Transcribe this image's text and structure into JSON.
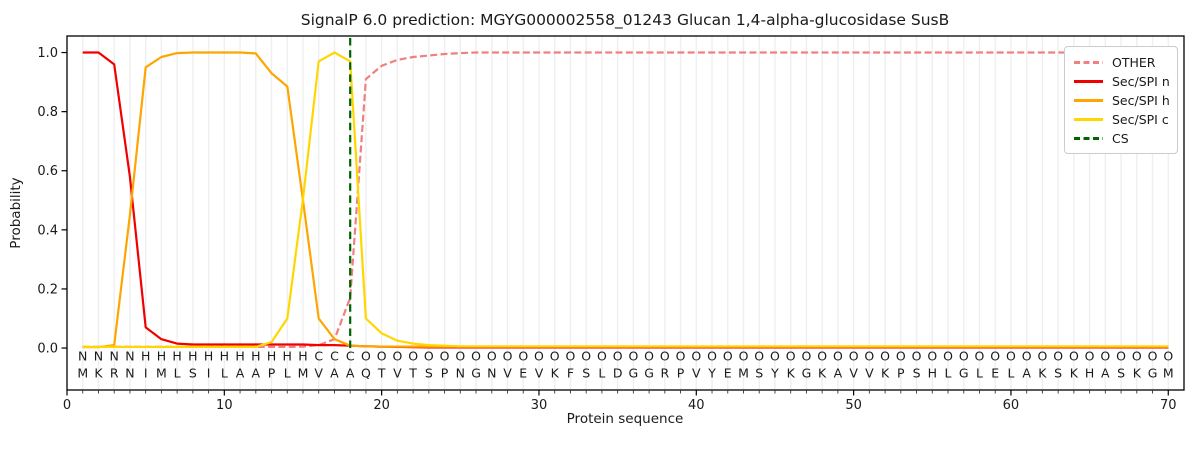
{
  "title": "SignalP 6.0 prediction: MGYG000002558_01243 Glucan 1,4-alpha-glucosidase SusB",
  "chart_data": {
    "type": "line",
    "title": "SignalP 6.0 prediction: MGYG000002558_01243 Glucan 1,4-alpha-glucosidase SusB",
    "xlabel": "Protein sequence",
    "ylabel": "Probability",
    "xlim": [
      0,
      71
    ],
    "ylim": [
      -0.142,
      1.056
    ],
    "x_ticks": [
      0,
      10,
      20,
      30,
      40,
      50,
      60,
      70
    ],
    "y_tick_labels": [
      "0.0",
      "0.2",
      "0.4",
      "0.6",
      "0.8",
      "1.0"
    ],
    "grid": "vertical line at every residue, light gray, no horizontal grid",
    "legend_position": "upper-right",
    "x": "residue positions 1-70",
    "series": [
      {
        "name": "OTHER",
        "color": "#f08080",
        "style": "dashed",
        "values": [
          0.004,
          0.004,
          0.004,
          0.004,
          0.004,
          0.004,
          0.004,
          0.004,
          0.004,
          0.004,
          0.004,
          0.004,
          0.004,
          0.004,
          0.005,
          0.01,
          0.03,
          0.17,
          0.91,
          0.955,
          0.975,
          0.985,
          0.99,
          0.995,
          0.998,
          1.0,
          1.0,
          1.0,
          1.0,
          1.0,
          1.0,
          1.0,
          1.0,
          1.0,
          1.0,
          1.0,
          1.0,
          1.0,
          1.0,
          1.0,
          1.0,
          1.0,
          1.0,
          1.0,
          1.0,
          1.0,
          1.0,
          1.0,
          1.0,
          1.0,
          1.0,
          1.0,
          1.0,
          1.0,
          1.0,
          1.0,
          1.0,
          1.0,
          1.0,
          1.0,
          1.0,
          1.0,
          1.0,
          1.0,
          1.0,
          1.0,
          1.0,
          1.0,
          1.0,
          1.0
        ]
      },
      {
        "name": "Sec/SPI n",
        "color": "#f10000",
        "style": "solid",
        "values": [
          1.0,
          1.0,
          0.96,
          0.58,
          0.07,
          0.03,
          0.015,
          0.012,
          0.012,
          0.012,
          0.012,
          0.012,
          0.012,
          0.012,
          0.012,
          0.01,
          0.01,
          0.008,
          0.006,
          0.005,
          0.004,
          0.003,
          0.002,
          0.002,
          0.002,
          0.002,
          0.002,
          0.002,
          0.002,
          0.002,
          0.002,
          0.002,
          0.002,
          0.002,
          0.002,
          0.002,
          0.002,
          0.002,
          0.002,
          0.002,
          0.002,
          0.002,
          0.002,
          0.002,
          0.002,
          0.002,
          0.002,
          0.002,
          0.002,
          0.002,
          0.002,
          0.002,
          0.002,
          0.002,
          0.002,
          0.002,
          0.002,
          0.002,
          0.002,
          0.002,
          0.002,
          0.002,
          0.002,
          0.002,
          0.002,
          0.002,
          0.002,
          0.002,
          0.002,
          0.002
        ]
      },
      {
        "name": "Sec/SPI h",
        "color": "#ffa500",
        "style": "solid",
        "values": [
          0.003,
          0.003,
          0.01,
          0.45,
          0.95,
          0.985,
          0.998,
          1.0,
          1.0,
          1.0,
          1.0,
          0.997,
          0.93,
          0.885,
          0.5,
          0.1,
          0.03,
          0.008,
          0.006,
          0.005,
          0.005,
          0.005,
          0.005,
          0.005,
          0.005,
          0.005,
          0.005,
          0.005,
          0.005,
          0.005,
          0.005,
          0.005,
          0.005,
          0.005,
          0.005,
          0.005,
          0.005,
          0.005,
          0.005,
          0.005,
          0.005,
          0.005,
          0.005,
          0.005,
          0.005,
          0.005,
          0.005,
          0.005,
          0.005,
          0.005,
          0.005,
          0.005,
          0.005,
          0.005,
          0.005,
          0.005,
          0.005,
          0.005,
          0.005,
          0.005,
          0.005,
          0.005,
          0.005,
          0.005,
          0.005,
          0.005,
          0.005,
          0.005,
          0.005,
          0.005
        ]
      },
      {
        "name": "Sec/SPI c",
        "color": "#ffd700",
        "style": "solid",
        "values": [
          0.004,
          0.004,
          0.004,
          0.004,
          0.004,
          0.004,
          0.004,
          0.004,
          0.004,
          0.004,
          0.004,
          0.004,
          0.02,
          0.1,
          0.505,
          0.97,
          1.0,
          0.97,
          0.1,
          0.05,
          0.025,
          0.015,
          0.01,
          0.008,
          0.006,
          0.006,
          0.006,
          0.006,
          0.006,
          0.006,
          0.006,
          0.006,
          0.006,
          0.006,
          0.006,
          0.006,
          0.006,
          0.006,
          0.006,
          0.006,
          0.006,
          0.006,
          0.006,
          0.006,
          0.006,
          0.006,
          0.006,
          0.006,
          0.006,
          0.006,
          0.006,
          0.006,
          0.006,
          0.006,
          0.006,
          0.006,
          0.006,
          0.006,
          0.006,
          0.006,
          0.006,
          0.006,
          0.006,
          0.006,
          0.006,
          0.006,
          0.006,
          0.006,
          0.006,
          0.006
        ]
      },
      {
        "name": "CS",
        "color": "#006400",
        "style": "dashed",
        "type": "vline",
        "x": 18
      }
    ],
    "sequence": "MKRNIMLSILAAPLMVAAQTVTSPNGNVEVKFSLDGGRPVYEMSYKGKAVVKPSHLGLELAKSKHASKGM",
    "residue_labels": "NNNNHHHHHHHHHHHCCCOOOOOOOOOOOOOOOOOOOOOOOOOOOOOOOOOOOOOOOOOOOOOOOOOOOO",
    "label_colors": {
      "N": "#f10000",
      "H": "#ffa500",
      "C": "#ffd700",
      "O": "#8f8f8f"
    },
    "sequence_color": "#2a2a2a",
    "cleavage_site_position": 18
  }
}
